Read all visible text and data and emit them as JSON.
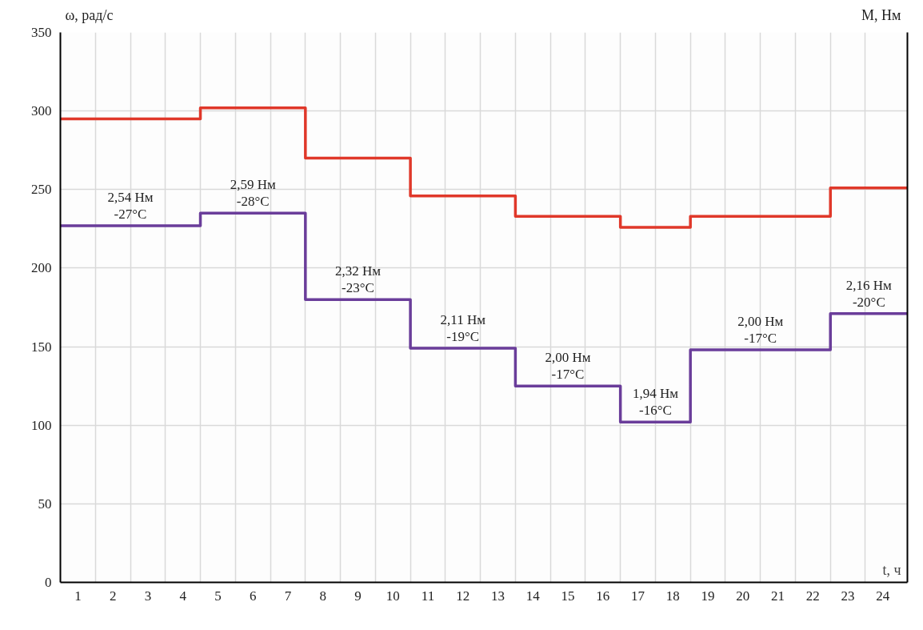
{
  "chart_data": {
    "type": "step",
    "xlabel": "t, ч",
    "ylabel": "ω, рад/с",
    "y2label": "M, Нм",
    "x": [
      0.5,
      4.5,
      7.5,
      10.5,
      13.5,
      16.5,
      18.5,
      22.5,
      24.7
    ],
    "series": [
      {
        "color": "#e0382a",
        "values": [
          295,
          302,
          270,
          246,
          233,
          226,
          233,
          251,
          251
        ]
      },
      {
        "color": "#6a3d9a",
        "values": [
          227,
          235,
          180,
          149,
          125,
          102,
          148,
          171,
          171
        ]
      }
    ],
    "annotations": [
      {
        "text": "2,54 Нм\n-27°C",
        "x": 2.5,
        "y": 227
      },
      {
        "text": "2,59 Нм\n-28°C",
        "x": 6,
        "y": 235
      },
      {
        "text": "2,32 Нм\n-23°C",
        "x": 9,
        "y": 180
      },
      {
        "text": "2,11 Нм\n-19°C",
        "x": 12,
        "y": 149
      },
      {
        "text": "2,00 Нм\n-17°C",
        "x": 15,
        "y": 125
      },
      {
        "text": "1,94 Нм\n-16°C",
        "x": 17.5,
        "y": 102
      },
      {
        "text": "2,00 Нм\n-17°C",
        "x": 20.5,
        "y": 148
      },
      {
        "text": "2,16 Нм\n-20°C",
        "x": 23.6,
        "y": 171
      }
    ],
    "xlim": [
      0.5,
      24.7
    ],
    "xticks": [
      1,
      2,
      3,
      4,
      5,
      6,
      7,
      8,
      9,
      10,
      11,
      12,
      13,
      14,
      15,
      16,
      17,
      18,
      19,
      20,
      21,
      22,
      23,
      24
    ],
    "ylim": [
      0,
      350
    ],
    "yticks": [
      0,
      50,
      100,
      150,
      200,
      250,
      300,
      350
    ],
    "grid": true,
    "line_style": "solid",
    "marker": "none"
  }
}
